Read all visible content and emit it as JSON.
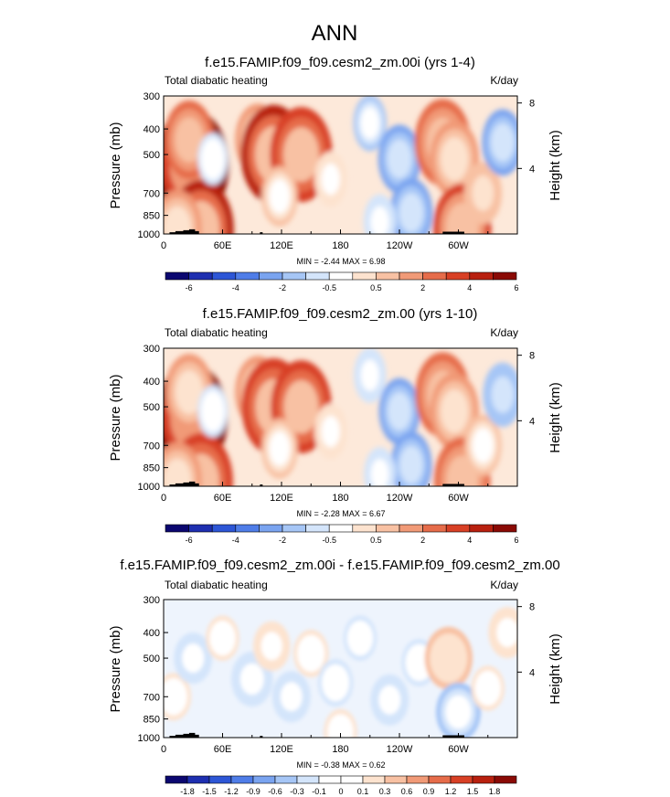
{
  "figure": {
    "main_title": "ANN"
  },
  "colors": {
    "fill_scale_main": [
      "#0b0770",
      "#1e2fb0",
      "#2d56d6",
      "#4f7de8",
      "#7aa4f0",
      "#a6c6f6",
      "#d4e5fb",
      "#ffffff",
      "#fde3cf",
      "#f8c1a3",
      "#f19a77",
      "#e66c4a",
      "#d84025",
      "#b8200f",
      "#8a0a05"
    ],
    "fill_scale_diff": [
      "#0b0770",
      "#1e2fb0",
      "#2d56d6",
      "#4f7de8",
      "#7aa4f0",
      "#a6c6f6",
      "#d4e5fb",
      "#ffffff",
      "#ffffff",
      "#fde3cf",
      "#f8c1a3",
      "#f19a77",
      "#e66c4a",
      "#d84025",
      "#b8200f",
      "#8a0a05"
    ]
  },
  "chart_data": [
    {
      "type": "heatmap",
      "title": "f.e15.FAMIP.f09_f09.cesm2_zm.00i (yrs 1-4)",
      "left_label": "Total diabatic heating",
      "right_label": "K/day",
      "xlabel": "",
      "ylabel": "Pressure (mb)",
      "y2label": "Height (km)",
      "x_ticks": [
        "0",
        "60E",
        "120E",
        "180",
        "120W",
        "60W"
      ],
      "x_tick_values": [
        0,
        60,
        120,
        180,
        240,
        300
      ],
      "xlim": [
        0,
        360
      ],
      "y_ticks": [
        "300",
        "400",
        "500",
        "700",
        "850",
        "1000"
      ],
      "y_tick_values": [
        300,
        400,
        500,
        700,
        850,
        1000
      ],
      "ylim": [
        1000,
        300
      ],
      "y2_ticks": [
        "8",
        "4"
      ],
      "y2_tick_values": [
        8,
        4
      ],
      "stats": "MIN = -2.44   MAX =  6.98",
      "colorbar_labels": [
        "-6",
        "-4",
        "-2",
        "-0.5",
        "0.5",
        "2",
        "4",
        "6"
      ],
      "scale": "main",
      "features": [
        {
          "lon": 28,
          "p": 550,
          "value": 6.5
        },
        {
          "lon": 26,
          "p": 440,
          "value": 3.2
        },
        {
          "lon": 38,
          "p": 960,
          "value": 5.2
        },
        {
          "lon": 14,
          "p": 950,
          "value": 3.0
        },
        {
          "lon": 50,
          "p": 520,
          "value": -0.6
        },
        {
          "lon": 96,
          "p": 440,
          "value": 2.6
        },
        {
          "lon": 112,
          "p": 500,
          "value": 5.2
        },
        {
          "lon": 140,
          "p": 500,
          "value": 4.8
        },
        {
          "lon": 118,
          "p": 720,
          "value": 1.4
        },
        {
          "lon": 170,
          "p": 620,
          "value": 0.9
        },
        {
          "lon": 210,
          "p": 380,
          "value": -1.0
        },
        {
          "lon": 240,
          "p": 520,
          "value": -2.2
        },
        {
          "lon": 252,
          "p": 830,
          "value": -2.2
        },
        {
          "lon": 220,
          "p": 900,
          "value": -0.9
        },
        {
          "lon": 284,
          "p": 450,
          "value": 4.0
        },
        {
          "lon": 296,
          "p": 520,
          "value": 3.0
        },
        {
          "lon": 304,
          "p": 950,
          "value": 4.2
        },
        {
          "lon": 325,
          "p": 700,
          "value": 1.6
        },
        {
          "lon": 345,
          "p": 450,
          "value": -2.0
        }
      ]
    },
    {
      "type": "heatmap",
      "title": "f.e15.FAMIP.f09_f09.cesm2_zm.00 (yrs 1-10)",
      "left_label": "Total diabatic heating",
      "right_label": "K/day",
      "xlabel": "",
      "ylabel": "Pressure (mb)",
      "y2label": "Height (km)",
      "x_ticks": [
        "0",
        "60E",
        "120E",
        "180",
        "120W",
        "60W"
      ],
      "x_tick_values": [
        0,
        60,
        120,
        180,
        240,
        300
      ],
      "xlim": [
        0,
        360
      ],
      "y_ticks": [
        "300",
        "400",
        "500",
        "700",
        "850",
        "1000"
      ],
      "y_tick_values": [
        300,
        400,
        500,
        700,
        850,
        1000
      ],
      "ylim": [
        1000,
        300
      ],
      "y2_ticks": [
        "8",
        "4"
      ],
      "y2_tick_values": [
        8,
        4
      ],
      "stats": "MIN = -2.28   MAX =  6.67",
      "colorbar_labels": [
        "-6",
        "-4",
        "-2",
        "-0.5",
        "0.5",
        "2",
        "4",
        "6"
      ],
      "scale": "main",
      "features": [
        {
          "lon": 28,
          "p": 550,
          "value": 6.2
        },
        {
          "lon": 26,
          "p": 440,
          "value": 3.0
        },
        {
          "lon": 38,
          "p": 960,
          "value": 5.0
        },
        {
          "lon": 14,
          "p": 950,
          "value": 3.0
        },
        {
          "lon": 50,
          "p": 520,
          "value": -0.6
        },
        {
          "lon": 96,
          "p": 440,
          "value": 2.6
        },
        {
          "lon": 112,
          "p": 500,
          "value": 5.0
        },
        {
          "lon": 140,
          "p": 500,
          "value": 4.6
        },
        {
          "lon": 118,
          "p": 720,
          "value": 1.4
        },
        {
          "lon": 170,
          "p": 620,
          "value": 0.9
        },
        {
          "lon": 210,
          "p": 380,
          "value": -0.9
        },
        {
          "lon": 240,
          "p": 520,
          "value": -2.0
        },
        {
          "lon": 252,
          "p": 830,
          "value": -2.0
        },
        {
          "lon": 220,
          "p": 900,
          "value": -0.8
        },
        {
          "lon": 284,
          "p": 450,
          "value": 3.8
        },
        {
          "lon": 296,
          "p": 520,
          "value": 3.0
        },
        {
          "lon": 304,
          "p": 950,
          "value": 4.0
        },
        {
          "lon": 325,
          "p": 700,
          "value": 1.5
        },
        {
          "lon": 345,
          "p": 450,
          "value": -1.8
        }
      ]
    },
    {
      "type": "heatmap",
      "title": "f.e15.FAMIP.f09_f09.cesm2_zm.00i - f.e15.FAMIP.f09_f09.cesm2_zm.00",
      "left_label": "Total diabatic heating",
      "right_label": "K/day",
      "xlabel": "",
      "ylabel": "Pressure (mb)",
      "y2label": "Height (km)",
      "x_ticks": [
        "0",
        "60E",
        "120E",
        "180",
        "120W",
        "60W"
      ],
      "x_tick_values": [
        0,
        60,
        120,
        180,
        240,
        300
      ],
      "xlim": [
        0,
        360
      ],
      "y_ticks": [
        "300",
        "400",
        "500",
        "700",
        "850",
        "1000"
      ],
      "y_tick_values": [
        300,
        400,
        500,
        700,
        850,
        1000
      ],
      "ylim": [
        1000,
        300
      ],
      "y2_ticks": [
        "8",
        "4"
      ],
      "y2_tick_values": [
        8,
        4
      ],
      "stats": "MIN = -0.38   MAX =  0.62",
      "colorbar_labels": [
        "-1.8",
        "-1.5",
        "-1.2",
        "-0.9",
        "-0.6",
        "-0.3",
        "-0.1",
        "0",
        "0.1",
        "0.3",
        "0.6",
        "0.9",
        "1.2",
        "1.5",
        "1.8"
      ],
      "scale": "diff",
      "features": [
        {
          "lon": 10,
          "p": 700,
          "value": 0.15
        },
        {
          "lon": 30,
          "p": 500,
          "value": -0.2
        },
        {
          "lon": 60,
          "p": 420,
          "value": 0.12
        },
        {
          "lon": 90,
          "p": 600,
          "value": -0.25
        },
        {
          "lon": 110,
          "p": 450,
          "value": 0.18
        },
        {
          "lon": 130,
          "p": 700,
          "value": -0.2
        },
        {
          "lon": 150,
          "p": 480,
          "value": 0.15
        },
        {
          "lon": 175,
          "p": 620,
          "value": -0.15
        },
        {
          "lon": 200,
          "p": 420,
          "value": -0.12
        },
        {
          "lon": 230,
          "p": 720,
          "value": -0.2
        },
        {
          "lon": 260,
          "p": 520,
          "value": -0.15
        },
        {
          "lon": 290,
          "p": 500,
          "value": 0.35
        },
        {
          "lon": 300,
          "p": 800,
          "value": -0.3
        },
        {
          "lon": 330,
          "p": 650,
          "value": 0.12
        },
        {
          "lon": 350,
          "p": 400,
          "value": 0.2
        },
        {
          "lon": 180,
          "p": 950,
          "value": 0.12
        }
      ]
    }
  ]
}
